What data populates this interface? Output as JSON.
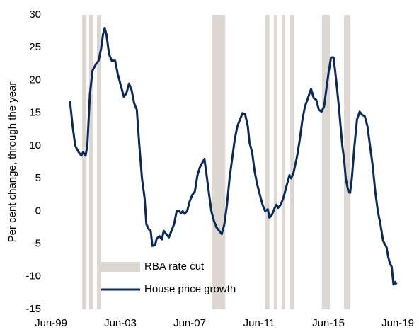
{
  "chart_data": {
    "type": "line",
    "y_label": "Per cent change, through the year",
    "x": [
      2000.6,
      2000.75,
      2000.9,
      2001.1,
      2001.25,
      2001.35,
      2001.5,
      2001.6,
      2001.75,
      2001.9,
      2002.1,
      2002.25,
      2002.4,
      2002.5,
      2002.6,
      2002.7,
      2002.85,
      2003.0,
      2003.2,
      2003.35,
      2003.55,
      2003.7,
      2003.85,
      2004.0,
      2004.15,
      2004.3,
      2004.45,
      2004.6,
      2004.75,
      2004.9,
      2005.0,
      2005.15,
      2005.25,
      2005.35,
      2005.5,
      2005.6,
      2005.75,
      2005.9,
      2006.0,
      2006.15,
      2006.3,
      2006.45,
      2006.6,
      2006.75,
      2006.9,
      2007.0,
      2007.1,
      2007.2,
      2007.35,
      2007.5,
      2007.65,
      2007.8,
      2007.95,
      2008.1,
      2008.25,
      2008.35,
      2008.45,
      2008.6,
      2008.75,
      2008.9,
      2009.05,
      2009.2,
      2009.35,
      2009.5,
      2009.65,
      2009.8,
      2009.95,
      2010.1,
      2010.25,
      2010.4,
      2010.55,
      2010.7,
      2010.85,
      2010.95,
      2011.1,
      2011.25,
      2011.4,
      2011.55,
      2011.7,
      2011.85,
      2012.0,
      2012.1,
      2012.25,
      2012.4,
      2012.5,
      2012.6,
      2012.75,
      2012.9,
      2013.0,
      2013.1,
      2013.25,
      2013.35,
      2013.5,
      2013.7,
      2013.85,
      2014.0,
      2014.15,
      2014.35,
      2014.5,
      2014.65,
      2014.8,
      2014.95,
      2015.1,
      2015.25,
      2015.35,
      2015.5,
      2015.65,
      2015.8,
      2015.95,
      2016.1,
      2016.2,
      2016.3,
      2016.4,
      2016.5,
      2016.65,
      2016.75,
      2016.85,
      2017.0,
      2017.15,
      2017.3,
      2017.45,
      2017.6,
      2017.75,
      2017.9,
      2018.05,
      2018.2,
      2018.35,
      2018.5,
      2018.65,
      2018.75,
      2018.85,
      2018.95,
      2019.05,
      2019.15,
      2019.25,
      2019.35,
      2019.42
    ],
    "series": [
      {
        "name": "House price growth",
        "color": "#0b2a5c",
        "values": [
          16.8,
          13,
          10,
          9,
          8.5,
          9,
          8.5,
          10,
          18,
          21.5,
          22.5,
          23,
          25,
          27,
          28,
          27,
          24,
          23,
          23,
          21,
          19,
          17.5,
          18,
          19.5,
          18.5,
          16.5,
          15.5,
          10,
          5,
          2,
          -2,
          -2.8,
          -3,
          -5.3,
          -5.2,
          -4.2,
          -3.8,
          -4.3,
          -3,
          -3.5,
          -4,
          -3,
          -2,
          0,
          0,
          -0.3,
          0,
          -0.4,
          0,
          1.5,
          2.5,
          3,
          5.5,
          6.8,
          7.5,
          8,
          6,
          3,
          0,
          -1.5,
          -2.5,
          -3,
          -3.5,
          -2,
          1,
          5,
          8,
          11,
          13,
          14,
          15,
          14.8,
          13,
          10.5,
          9,
          6,
          4,
          2.5,
          1,
          0,
          0.3,
          -1,
          -0.5,
          0.5,
          1,
          0.5,
          1,
          2,
          3,
          4,
          5.5,
          5,
          6,
          8.5,
          11,
          14,
          16,
          17.5,
          18.7,
          17.3,
          17,
          15.5,
          15.2,
          16,
          18,
          21,
          23.5,
          23.5,
          20,
          16,
          13,
          10,
          8,
          5,
          3,
          2.8,
          5,
          10,
          14,
          15.2,
          14.7,
          14.5,
          13,
          10,
          7,
          3,
          0,
          -2,
          -4.5,
          -5,
          -5.5,
          -7,
          -8,
          -8.5,
          -11.2,
          -10.8,
          -11.2
        ]
      }
    ],
    "bands": {
      "name": "RBA rate cut",
      "color": "#dcd7d1",
      "ranges": [
        [
          2001.3,
          2001.55
        ],
        [
          2001.7,
          2001.95
        ],
        [
          2002.15,
          2002.4
        ],
        [
          2008.8,
          2009.55
        ],
        [
          2011.85,
          2012.1
        ],
        [
          2012.35,
          2012.56
        ],
        [
          2012.8,
          2013.0
        ],
        [
          2013.3,
          2013.5
        ],
        [
          2015.13,
          2015.58
        ],
        [
          2016.4,
          2016.77
        ]
      ]
    },
    "xlim": [
      1999.5,
      2019.5
    ],
    "xticks": [
      {
        "value": 1999.5,
        "label": "Jun-99"
      },
      {
        "value": 2003.5,
        "label": "Jun-03"
      },
      {
        "value": 2007.5,
        "label": "Jun-07"
      },
      {
        "value": 2011.5,
        "label": "Jun-11"
      },
      {
        "value": 2015.5,
        "label": "Jun-15"
      },
      {
        "value": 2019.5,
        "label": "Jun-19"
      }
    ],
    "ylim": [
      -15,
      30
    ],
    "yticks": [
      -15,
      -10,
      -5,
      0,
      5,
      10,
      15,
      20,
      25,
      30
    ],
    "legend": "lower left",
    "grid": false
  }
}
